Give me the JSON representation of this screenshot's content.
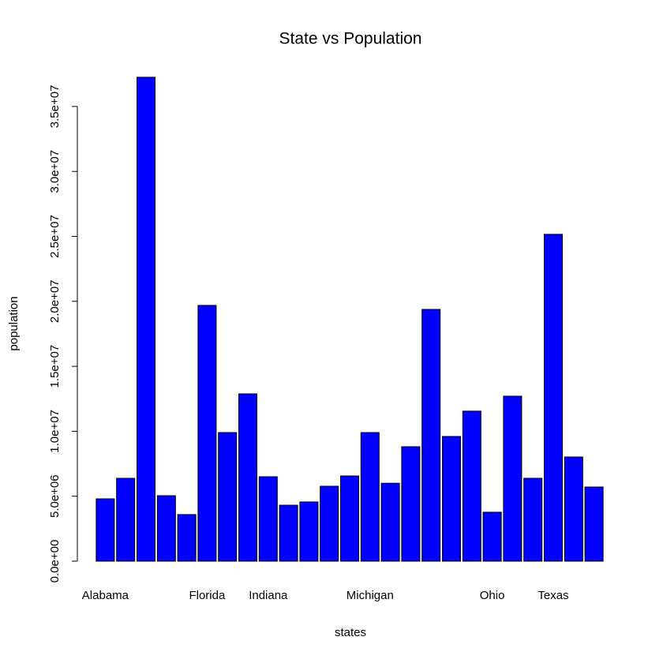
{
  "chart_data": {
    "type": "bar",
    "title": "State vs Population",
    "x_label": "states",
    "y_label": "population",
    "categories": [
      "Alabama",
      null,
      null,
      null,
      null,
      "Florida",
      null,
      null,
      "Indiana",
      null,
      null,
      null,
      null,
      "Michigan",
      null,
      null,
      null,
      null,
      null,
      "Ohio",
      null,
      null,
      "Texas",
      null,
      null
    ],
    "values": [
      4800000,
      6380000,
      37250000,
      5040000,
      3590000,
      19690000,
      9900000,
      12880000,
      6500000,
      4310000,
      4560000,
      5770000,
      6560000,
      9900000,
      6000000,
      8810000,
      19380000,
      9600000,
      11550000,
      3770000,
      12700000,
      6380000,
      25160000,
      8020000,
      5710000
    ],
    "color": "#0000ff",
    "ylim": [
      0,
      38700000
    ],
    "yticks": [
      {
        "value": 0,
        "label": "0.0e+00"
      },
      {
        "value": 5000000,
        "label": "5.0e+06"
      },
      {
        "value": 10000000,
        "label": "1.0e+07"
      },
      {
        "value": 15000000,
        "label": "1.5e+07"
      },
      {
        "value": 20000000,
        "label": "2.0e+07"
      },
      {
        "value": 25000000,
        "label": "2.5e+07"
      },
      {
        "value": 30000000,
        "label": "3.0e+07"
      },
      {
        "value": 35000000,
        "label": "3.5e+07"
      }
    ],
    "grid": false
  }
}
